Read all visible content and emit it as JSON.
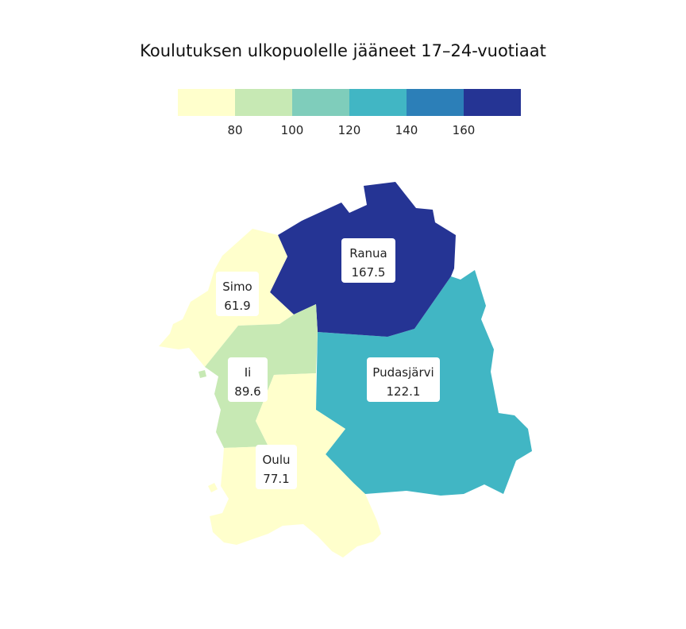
{
  "title": "Koulutuksen ulkopuolelle jääneet 17–24-vuotiaat",
  "legend": {
    "colors": [
      "#ffffcc",
      "#c7e9b4",
      "#7fcdbb",
      "#41b6c4",
      "#2c7fb8",
      "#253494"
    ],
    "ticks": [
      "80",
      "100",
      "120",
      "140",
      "160"
    ]
  },
  "regions": [
    {
      "name": "Ranua",
      "value": "167.5",
      "color": "#253494"
    },
    {
      "name": "Simo",
      "value": "61.9",
      "color": "#ffffcc"
    },
    {
      "name": "Ii",
      "value": "89.6",
      "color": "#c7e9b4"
    },
    {
      "name": "Pudasjärvi",
      "value": "122.1",
      "color": "#41b6c4"
    },
    {
      "name": "Oulu",
      "value": "77.1",
      "color": "#ffffcc"
    }
  ]
}
